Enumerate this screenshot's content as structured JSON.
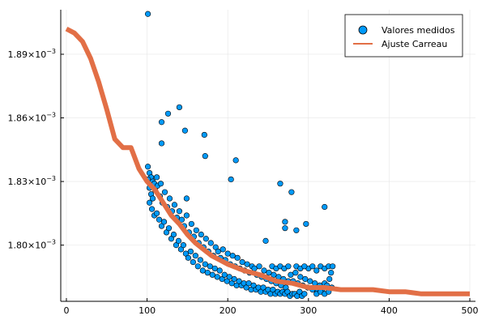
{
  "chart_data": {
    "type": "scatter",
    "xlim": [
      -7,
      507
    ],
    "ylim": [
      0.0017735,
      0.001911
    ],
    "grid": true,
    "legend_position": "top-right",
    "x_ticks": [
      0,
      100,
      200,
      300,
      400,
      500
    ],
    "x_tick_labels": [
      "0",
      "100",
      "200",
      "300",
      "400",
      "500"
    ],
    "y_ticks": [
      0.0018,
      0.00183,
      0.00186,
      0.00189
    ],
    "y_tick_labels": [
      {
        "mantissa": "1.80",
        "base": "×10",
        "exponent": "−3"
      },
      {
        "mantissa": "1.83",
        "base": "×10",
        "exponent": "−3"
      },
      {
        "mantissa": "1.86",
        "base": "×10",
        "exponent": "−3"
      },
      {
        "mantissa": "1.89",
        "base": "×10",
        "exponent": "−3"
      }
    ],
    "series": [
      {
        "name": "Valores medidos",
        "kind": "scatter",
        "color": "#009AFA",
        "points": [
          [
            101,
            0.001909
          ],
          [
            140,
            0.001865
          ],
          [
            126,
            0.001862
          ],
          [
            118,
            0.001858
          ],
          [
            147,
            0.001854
          ],
          [
            171,
            0.001852
          ],
          [
            118,
            0.001848
          ],
          [
            172,
            0.001842
          ],
          [
            210,
            0.00184
          ],
          [
            204,
            0.001831
          ],
          [
            265,
            0.001829
          ],
          [
            279,
            0.001825
          ],
          [
            149,
            0.001822
          ],
          [
            320,
            0.001818
          ],
          [
            271,
            0.001811
          ],
          [
            297,
            0.00181
          ],
          [
            271,
            0.001808
          ],
          [
            285,
            0.001807
          ],
          [
            247,
            0.001802
          ],
          [
            101,
            0.001837
          ],
          [
            103,
            0.001834
          ],
          [
            105,
            0.001832
          ],
          [
            107,
            0.00183
          ],
          [
            109,
            0.001829
          ],
          [
            101,
            0.001831
          ],
          [
            103,
            0.001827
          ],
          [
            105,
            0.001824
          ],
          [
            107,
            0.001822
          ],
          [
            110,
            0.001826
          ],
          [
            113,
            0.001828
          ],
          [
            116,
            0.001823
          ],
          [
            119,
            0.00182
          ],
          [
            122,
            0.001825
          ],
          [
            125,
            0.001818
          ],
          [
            128,
            0.001822
          ],
          [
            131,
            0.001816
          ],
          [
            134,
            0.001819
          ],
          [
            137,
            0.001813
          ],
          [
            140,
            0.001816
          ],
          [
            103,
            0.00182
          ],
          [
            106,
            0.001817
          ],
          [
            109,
            0.001814
          ],
          [
            112,
            0.001815
          ],
          [
            115,
            0.001812
          ],
          [
            118,
            0.001809
          ],
          [
            121,
            0.001811
          ],
          [
            124,
            0.001806
          ],
          [
            127,
            0.001808
          ],
          [
            130,
            0.001803
          ],
          [
            133,
            0.001805
          ],
          [
            136,
            0.0018
          ],
          [
            139,
            0.001802
          ],
          [
            142,
            0.001798
          ],
          [
            145,
            0.0018
          ],
          [
            143,
            0.001812
          ],
          [
            146,
            0.001809
          ],
          [
            149,
            0.001814
          ],
          [
            152,
            0.001806
          ],
          [
            155,
            0.00181
          ],
          [
            158,
            0.001804
          ],
          [
            161,
            0.001807
          ],
          [
            164,
            0.001801
          ],
          [
            167,
            0.001805
          ],
          [
            170,
            0.001799
          ],
          [
            173,
            0.001803
          ],
          [
            176,
            0.001797
          ],
          [
            179,
            0.001801
          ],
          [
            182,
            0.001795
          ],
          [
            185,
            0.001799
          ],
          [
            148,
            0.001796
          ],
          [
            151,
            0.001794
          ],
          [
            154,
            0.001797
          ],
          [
            157,
            0.001792
          ],
          [
            160,
            0.001795
          ],
          [
            163,
            0.00179
          ],
          [
            166,
            0.001793
          ],
          [
            169,
            0.001788
          ],
          [
            172,
            0.001791
          ],
          [
            175,
            0.001787
          ],
          [
            178,
            0.00179
          ],
          [
            181,
            0.001786
          ],
          [
            184,
            0.001789
          ],
          [
            187,
            0.001785
          ],
          [
            190,
            0.001788
          ],
          [
            188,
            0.001797
          ],
          [
            191,
            0.001794
          ],
          [
            194,
            0.001798
          ],
          [
            197,
            0.001793
          ],
          [
            200,
            0.001796
          ],
          [
            203,
            0.001791
          ],
          [
            206,
            0.001795
          ],
          [
            209,
            0.00179
          ],
          [
            212,
            0.001794
          ],
          [
            215,
            0.001789
          ],
          [
            218,
            0.001792
          ],
          [
            221,
            0.001788
          ],
          [
            224,
            0.001791
          ],
          [
            227,
            0.001787
          ],
          [
            230,
            0.00179
          ],
          [
            193,
            0.001784
          ],
          [
            196,
            0.001786
          ],
          [
            199,
            0.001783
          ],
          [
            202,
            0.001785
          ],
          [
            205,
            0.001782
          ],
          [
            208,
            0.001784
          ],
          [
            211,
            0.001781
          ],
          [
            214,
            0.001783
          ],
          [
            217,
            0.001781
          ],
          [
            220,
            0.001782
          ],
          [
            223,
            0.00178
          ],
          [
            226,
            0.001782
          ],
          [
            229,
            0.001779
          ],
          [
            232,
            0.001781
          ],
          [
            235,
            0.001779
          ],
          [
            233,
            0.001789
          ],
          [
            236,
            0.001786
          ],
          [
            239,
            0.00179
          ],
          [
            242,
            0.001785
          ],
          [
            245,
            0.001788
          ],
          [
            248,
            0.001784
          ],
          [
            251,
            0.001787
          ],
          [
            254,
            0.001783
          ],
          [
            257,
            0.001786
          ],
          [
            260,
            0.001782
          ],
          [
            263,
            0.001785
          ],
          [
            266,
            0.001781
          ],
          [
            269,
            0.001784
          ],
          [
            272,
            0.00178
          ],
          [
            275,
            0.001783
          ],
          [
            238,
            0.00178
          ],
          [
            241,
            0.001778
          ],
          [
            244,
            0.00178
          ],
          [
            247,
            0.001778
          ],
          [
            250,
            0.001779
          ],
          [
            253,
            0.001777
          ],
          [
            256,
            0.001779
          ],
          [
            259,
            0.001777
          ],
          [
            262,
            0.001778
          ],
          [
            265,
            0.001777
          ],
          [
            278,
            0.001786
          ],
          [
            281,
            0.001783
          ],
          [
            284,
            0.001787
          ],
          [
            287,
            0.001782
          ],
          [
            290,
            0.001785
          ],
          [
            293,
            0.001781
          ],
          [
            296,
            0.001784
          ],
          [
            299,
            0.00178
          ],
          [
            302,
            0.001783
          ],
          [
            305,
            0.001779
          ],
          [
            308,
            0.001782
          ],
          [
            311,
            0.001778
          ],
          [
            314,
            0.001781
          ],
          [
            317,
            0.001779
          ],
          [
            320,
            0.001782
          ],
          [
            268,
            0.001778
          ],
          [
            271,
            0.001777
          ],
          [
            274,
            0.001778
          ],
          [
            277,
            0.001776
          ],
          [
            280,
            0.001777
          ],
          [
            300,
            0.001789
          ],
          [
            305,
            0.00179
          ],
          [
            310,
            0.001788
          ],
          [
            315,
            0.00179
          ],
          [
            320,
            0.001789
          ],
          [
            325,
            0.00179
          ],
          [
            328,
            0.001787
          ],
          [
            326,
            0.001784
          ],
          [
            323,
            0.001781
          ],
          [
            329,
            0.00178
          ],
          [
            283,
            0.001777
          ],
          [
            286,
            0.001776
          ],
          [
            289,
            0.001778
          ],
          [
            292,
            0.001776
          ],
          [
            295,
            0.001777
          ],
          [
            310,
            0.001777
          ],
          [
            315,
            0.001778
          ],
          [
            320,
            0.001777
          ],
          [
            325,
            0.001778
          ],
          [
            330,
            0.00179
          ],
          [
            255,
            0.00179
          ],
          [
            260,
            0.001789
          ],
          [
            265,
            0.00179
          ],
          [
            270,
            0.001789
          ],
          [
            275,
            0.00179
          ],
          [
            285,
            0.00179
          ],
          [
            290,
            0.001789
          ],
          [
            295,
            0.00179
          ],
          [
            112,
            0.001832
          ],
          [
            117,
            0.001829
          ]
        ]
      },
      {
        "name": "Ajuste Carreau",
        "kind": "line",
        "color": "#E26F46",
        "points": [
          [
            0,
            0.001902
          ],
          [
            10,
            0.0019
          ],
          [
            20,
            0.001896
          ],
          [
            30,
            0.001888
          ],
          [
            40,
            0.001877
          ],
          [
            50,
            0.001864
          ],
          [
            60,
            0.00185
          ],
          [
            70,
            0.001846
          ],
          [
            80,
            0.001846
          ],
          [
            90,
            0.001836
          ],
          [
            100,
            0.00183
          ],
          [
            110,
            0.001826
          ],
          [
            120,
            0.00182
          ],
          [
            130,
            0.001814
          ],
          [
            140,
            0.00181
          ],
          [
            150,
            0.001805
          ],
          [
            160,
            0.001801
          ],
          [
            170,
            0.001798
          ],
          [
            180,
            0.001795
          ],
          [
            190,
            0.001793
          ],
          [
            200,
            0.001791
          ],
          [
            220,
            0.001788
          ],
          [
            240,
            0.001786
          ],
          [
            260,
            0.001783
          ],
          [
            280,
            0.001782
          ],
          [
            300,
            0.00178
          ],
          [
            320,
            0.00178
          ],
          [
            340,
            0.001779
          ],
          [
            360,
            0.001779
          ],
          [
            380,
            0.001779
          ],
          [
            400,
            0.001778
          ],
          [
            420,
            0.001778
          ],
          [
            440,
            0.001777
          ],
          [
            460,
            0.001777
          ],
          [
            480,
            0.001777
          ],
          [
            500,
            0.001777
          ]
        ]
      }
    ]
  }
}
